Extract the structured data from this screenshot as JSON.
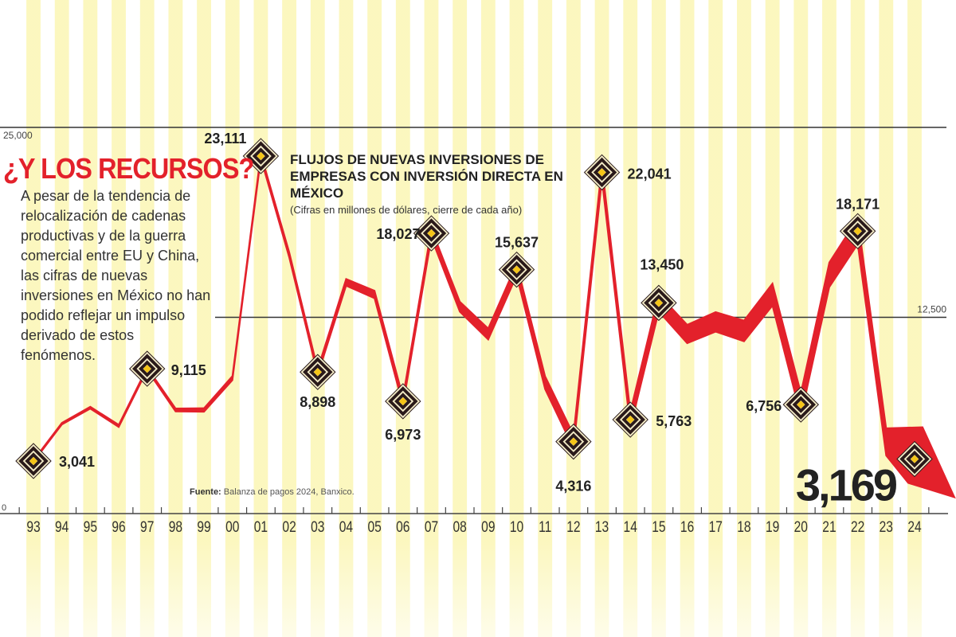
{
  "headline": "¿Y LOS RECURSOS?",
  "body_text": "A pesar de la tendencia de relocalización de cadenas productivas y de la guerra comercial entre EU y China, las cifras de nuevas inversiones en México no han podido reflejar un impulso derivado de estos fenómenos.",
  "source_label": "Fuente:",
  "source_text": "Balanza de pagos 2024, Banxico.",
  "colors": {
    "line": "#e3212b",
    "stripe": "#fbf6b8",
    "marker": "#2a1a1a",
    "marker_center": "#f5c518",
    "headline": "#e3212b"
  },
  "chart_data": {
    "type": "line",
    "title": "FLUJOS DE NUEVAS INVERSIONES DE EMPRESAS CON INVERSIÓN DIRECTA EN MÉXICO",
    "subtitle": "(Cifras en millones de dólares, cierre de cada año)",
    "xlabel": "",
    "ylabel": "",
    "ylim": [
      0,
      25000
    ],
    "yticks": [
      "0",
      "12,500",
      "25,000"
    ],
    "ytick_values": [
      0,
      12500,
      25000
    ],
    "grid": "horizontal lines at 12,500 and 25,000",
    "categories": [
      "93",
      "94",
      "95",
      "96",
      "97",
      "98",
      "99",
      "00",
      "01",
      "02",
      "03",
      "04",
      "05",
      "06",
      "07",
      "08",
      "09",
      "10",
      "11",
      "12",
      "13",
      "14",
      "15",
      "16",
      "17",
      "18",
      "19",
      "20",
      "21",
      "22",
      "23",
      "24"
    ],
    "values": [
      3041,
      5500,
      6550,
      5350,
      9115,
      6400,
      6400,
      8500,
      23111,
      16600,
      8898,
      14800,
      14000,
      6973,
      18027,
      13200,
      11400,
      15637,
      8200,
      4316,
      22041,
      5763,
      13450,
      11400,
      12200,
      11600,
      14000,
      6756,
      15300,
      18171,
      4300,
      3169
    ],
    "labeled_points": [
      {
        "category": "93",
        "label": "3,041"
      },
      {
        "category": "97",
        "label": "9,115"
      },
      {
        "category": "01",
        "label": "23,111"
      },
      {
        "category": "03",
        "label": "8,898"
      },
      {
        "category": "06",
        "label": "6,973"
      },
      {
        "category": "07",
        "label": "18,027"
      },
      {
        "category": "10",
        "label": "15,637"
      },
      {
        "category": "12",
        "label": "4,316"
      },
      {
        "category": "13",
        "label": "22,041"
      },
      {
        "category": "14",
        "label": "5,763"
      },
      {
        "category": "15",
        "label": "13,450"
      },
      {
        "category": "20",
        "label": "6,756"
      },
      {
        "category": "22",
        "label": "18,171"
      },
      {
        "category": "24",
        "label": "3,169"
      }
    ]
  }
}
